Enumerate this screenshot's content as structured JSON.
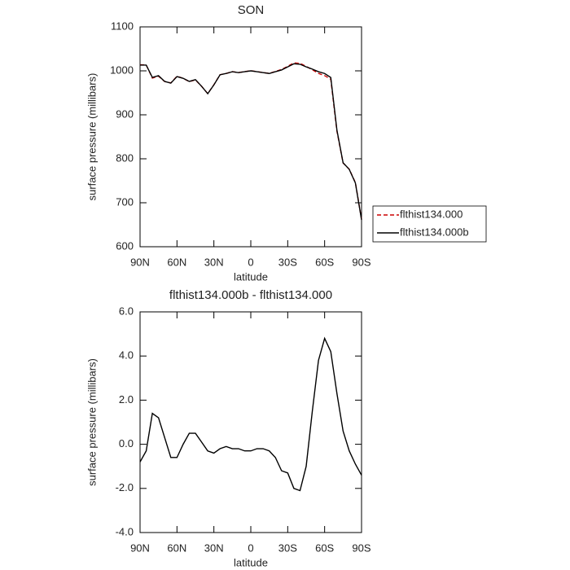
{
  "chart_data": [
    {
      "type": "line",
      "title": "SON",
      "xlabel": "latitude",
      "ylabel": "surface pressure (millibars)",
      "x": [
        90,
        85,
        80,
        75,
        70,
        65,
        60,
        55,
        50,
        45,
        40,
        35,
        30,
        25,
        20,
        15,
        10,
        5,
        0,
        -5,
        -10,
        -15,
        -20,
        -25,
        -30,
        -35,
        -40,
        -45,
        -50,
        -55,
        -60,
        -65,
        -70,
        -75,
        -80,
        -85,
        -90
      ],
      "series": [
        {
          "name": "flthist134.000",
          "color": "#cc0000",
          "dash": true,
          "values": [
            1013.8,
            1013.3,
            983.6,
            987.8,
            975.7,
            972.6,
            987.6,
            983,
            975.5,
            979.5,
            964.9,
            948.3,
            968.4,
            991.2,
            994.1,
            998.2,
            996.2,
            998.3,
            1000.3,
            998.2,
            996.2,
            994.3,
            998.6,
            1003.2,
            1010.3,
            1018,
            1017.1,
            1010,
            1002.5,
            994.2,
            989.2,
            980.8,
            862.7,
            790.4,
            776.3,
            745.9,
            662.4
          ]
        },
        {
          "name": "flthist134.000b",
          "color": "#000000",
          "dash": false,
          "values": [
            1013,
            1013,
            985,
            989,
            976,
            972,
            987,
            983,
            976,
            980,
            965,
            948,
            968,
            991,
            994,
            998,
            996,
            998,
            1000,
            998,
            996,
            994,
            998,
            1002,
            1009,
            1016,
            1015,
            1009,
            1004,
            998,
            994,
            985,
            865,
            791,
            776,
            745,
            661
          ]
        }
      ],
      "xlim": [
        90,
        -90
      ],
      "xticks": [
        {
          "value": 90,
          "label": "90N"
        },
        {
          "value": 60,
          "label": "60N"
        },
        {
          "value": 30,
          "label": "30N"
        },
        0,
        {
          "value": -30,
          "label": "30S"
        },
        {
          "value": -60,
          "label": "60S"
        },
        {
          "value": -90,
          "label": "90S"
        }
      ],
      "ylim": [
        600,
        1100
      ],
      "yticks": [
        600,
        700,
        800,
        900,
        1000,
        1100
      ],
      "legend": "right"
    },
    {
      "type": "line",
      "title": "flthist134.000b - flthist134.000",
      "xlabel": "latitude",
      "ylabel": "surface pressure (millibars)",
      "x": [
        90,
        85,
        80,
        75,
        70,
        65,
        60,
        55,
        50,
        45,
        40,
        35,
        30,
        25,
        20,
        15,
        10,
        5,
        0,
        -5,
        -10,
        -15,
        -20,
        -25,
        -30,
        -35,
        -40,
        -45,
        -50,
        -55,
        -60,
        -65,
        -70,
        -75,
        -80,
        -85,
        -90
      ],
      "series": [
        {
          "color": "#000000",
          "dash": false,
          "values": [
            -0.8,
            -0.3,
            1.4,
            1.2,
            0.3,
            -0.6,
            -0.6,
            0.0,
            0.5,
            0.5,
            0.1,
            -0.3,
            -0.4,
            -0.2,
            -0.1,
            -0.2,
            -0.2,
            -0.3,
            -0.3,
            -0.2,
            -0.2,
            -0.3,
            -0.6,
            -1.2,
            -1.3,
            -2.0,
            -2.1,
            -1.0,
            1.5,
            3.8,
            4.8,
            4.2,
            2.3,
            0.6,
            -0.3,
            -0.9,
            -1.4
          ]
        }
      ],
      "xlim": [
        90,
        -90
      ],
      "xticks": [
        {
          "value": 90,
          "label": "90N"
        },
        {
          "value": 60,
          "label": "60N"
        },
        {
          "value": 30,
          "label": "30N"
        },
        0,
        {
          "value": -30,
          "label": "30S"
        },
        {
          "value": -60,
          "label": "60S"
        },
        {
          "value": -90,
          "label": "90S"
        }
      ],
      "ylim": [
        -4,
        6
      ],
      "yticks": [
        {
          "value": -4,
          "label": "-4.0"
        },
        {
          "value": -2,
          "label": "-2.0"
        },
        {
          "value": 0,
          "label": "0.0"
        },
        {
          "value": 2,
          "label": "2.0"
        },
        {
          "value": 4,
          "label": "4.0"
        },
        {
          "value": 6,
          "label": "6.0"
        }
      ]
    }
  ]
}
